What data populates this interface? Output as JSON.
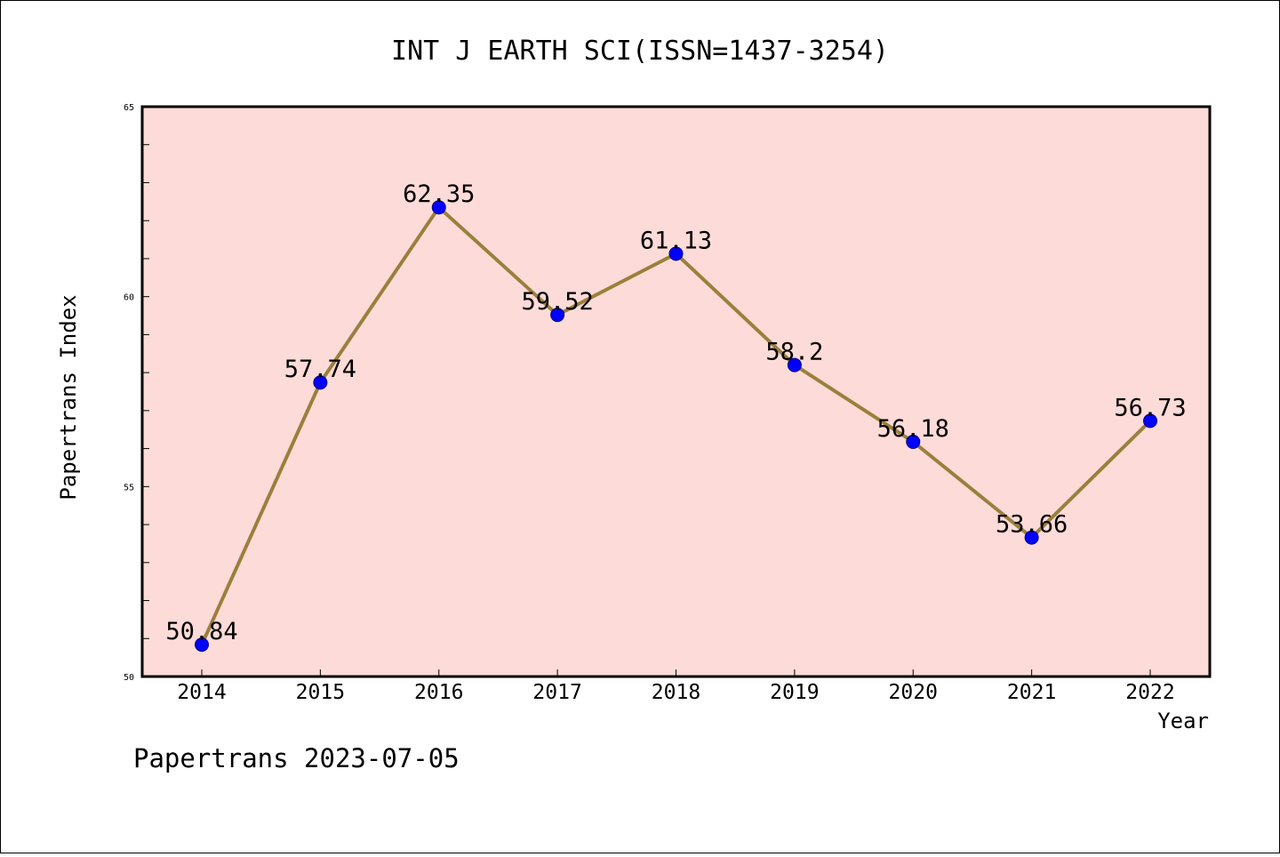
{
  "chart_data": {
    "type": "line",
    "title": "INT J EARTH SCI(ISSN=1437-3254)",
    "xlabel": "Year",
    "ylabel": "Papertrans Index",
    "footer": "Papertrans 2023-07-05",
    "categories": [
      "2014",
      "2015",
      "2016",
      "2017",
      "2018",
      "2019",
      "2020",
      "2021",
      "2022"
    ],
    "series": [
      {
        "values": [
          50.84,
          57.74,
          62.35,
          59.52,
          61.13,
          58.2,
          56.18,
          53.66,
          56.73
        ],
        "labels": [
          "50.84",
          "57.74",
          "62.35",
          "59.52",
          "61.13",
          "58.2",
          "56.18",
          "53.66",
          "56.73"
        ]
      }
    ],
    "ylim": [
      50,
      65
    ],
    "y_ticks": [
      "50",
      "55",
      "60",
      "65"
    ],
    "grid": false,
    "legend": "none",
    "colors": {
      "plot_background": "#fddbd8",
      "line": "#9b7f3c",
      "marker": "#0000ff",
      "frame": "#000000"
    }
  }
}
